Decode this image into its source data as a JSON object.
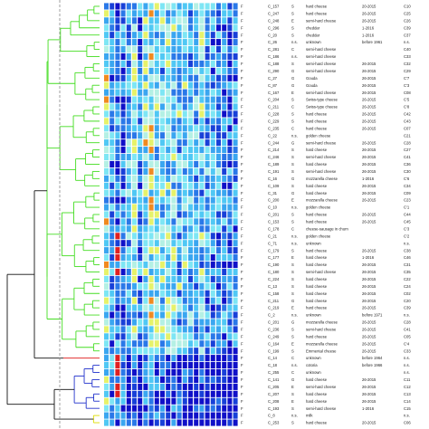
{
  "figure": {
    "type": "dendrogram-heatmap",
    "cluster_colors": {
      "green": "#44dd22",
      "red": "#dd1111",
      "blue": "#2233cc",
      "yellow": "#dddd00",
      "root": "#111111",
      "cutoff_line": "#888888"
    },
    "heatmap_palette": [
      "#1010c8",
      "#1840d8",
      "#2a78e8",
      "#3aa6f0",
      "#50c8f4",
      "#7ee6f4",
      "#b4f0e4",
      "#e6f26a",
      "#f08a20",
      "#e02020"
    ],
    "rows": [
      {
        "f": "F",
        "id": "C_157",
        "n": "S",
        "type": "hard cheese",
        "date": "20-2015",
        "code": "C10",
        "cl": "g"
      },
      {
        "f": "F",
        "id": "C_247",
        "n": "S",
        "type": "hard cheese",
        "date": "26-2015",
        "code": "C25",
        "cl": "g"
      },
      {
        "f": "F",
        "id": "C_248",
        "n": "E",
        "type": "semi-hard cheese",
        "date": "26-2015",
        "code": "C26",
        "cl": "g"
      },
      {
        "f": "F",
        "id": "C_296",
        "n": "S",
        "type": "cheddar",
        "date": "1-2016",
        "code": "C39",
        "cl": "g"
      },
      {
        "f": "F",
        "id": "C_20",
        "n": "S",
        "type": "cheddar",
        "date": "1-2016",
        "code": "C37",
        "cl": "g"
      },
      {
        "f": "F",
        "id": "C_26",
        "n": "n.s.",
        "type": "unknown",
        "date": "before 1961",
        "code": "n.s.",
        "cl": "g"
      },
      {
        "f": "F",
        "id": "C_281",
        "n": "C",
        "type": "semi-hard cheese",
        "date": "",
        "code": "C40",
        "cl": "g"
      },
      {
        "f": "F",
        "id": "C_186",
        "n": "n.s.",
        "type": "semi-hard cheese",
        "date": "",
        "code": "C33",
        "cl": "g"
      },
      {
        "f": "F",
        "id": "C_188",
        "n": "S",
        "type": "semi-hard cheese",
        "date": "26-2015",
        "code": "C32",
        "cl": "g"
      },
      {
        "f": "F",
        "id": "C_290",
        "n": "G",
        "type": "semi-hard cheese",
        "date": "26-2015",
        "code": "C29",
        "cl": "g"
      },
      {
        "f": "F",
        "id": "C_27",
        "n": "G",
        "type": "Gouda",
        "date": "26-2015",
        "code": "C'7",
        "cl": "g"
      },
      {
        "f": "F",
        "id": "C_87",
        "n": "G",
        "type": "Gouda",
        "date": "26-2015",
        "code": "C'3",
        "cl": "g"
      },
      {
        "f": "F",
        "id": "C_167",
        "n": "E",
        "type": "semi-hard cheese",
        "date": "26-2015",
        "code": "C08",
        "cl": "g"
      },
      {
        "f": "F",
        "id": "C_204",
        "n": "S",
        "type": "Swiss-type cheese",
        "date": "26-2015",
        "code": "C'5",
        "cl": "g"
      },
      {
        "f": "F",
        "id": "C_211",
        "n": "C",
        "type": "Swiss-type cheese",
        "date": "26-2015",
        "code": "C'8",
        "cl": "g"
      },
      {
        "f": "F",
        "id": "C_228",
        "n": "S",
        "type": "hard cheese",
        "date": "26-2015",
        "code": "C42",
        "cl": "g"
      },
      {
        "f": "F",
        "id": "C_229",
        "n": "S",
        "type": "hard cheese",
        "date": "26-2015",
        "code": "C43",
        "cl": "g"
      },
      {
        "f": "F",
        "id": "C_235",
        "n": "C",
        "type": "hard cheese",
        "date": "26-2015",
        "code": "C07",
        "cl": "g"
      },
      {
        "f": "F",
        "id": "C_22",
        "n": "n.s.",
        "type": "golden cheese",
        "date": "",
        "code": "C21",
        "cl": "g"
      },
      {
        "f": "F",
        "id": "C_244",
        "n": "G",
        "type": "semi-hard cheese",
        "date": "26-2015",
        "code": "C28",
        "cl": "g"
      },
      {
        "f": "F",
        "id": "C_214",
        "n": "S",
        "type": "hard cheese",
        "date": "26-2015",
        "code": "C27",
        "cl": "g"
      },
      {
        "f": "F",
        "id": "C_246",
        "n": "S",
        "type": "semi-hard cheese",
        "date": "26-2015",
        "code": "C41",
        "cl": "g"
      },
      {
        "f": "F",
        "id": "C_189",
        "n": "S",
        "type": "hard cheese",
        "date": "26-2015",
        "code": "C36",
        "cl": "g"
      },
      {
        "f": "F",
        "id": "C_191",
        "n": "S",
        "type": "semi-hard cheese",
        "date": "26-2015",
        "code": "C30",
        "cl": "g"
      },
      {
        "f": "F",
        "id": "C_16",
        "n": "G",
        "type": "mozzarella cheese",
        "date": "1-2016",
        "code": "C'6",
        "cl": "g"
      },
      {
        "f": "F",
        "id": "C_109",
        "n": "S",
        "type": "hard cheese",
        "date": "26-2015",
        "code": "C34",
        "cl": "g"
      },
      {
        "f": "F",
        "id": "C_31",
        "n": "G",
        "type": "hard cheese",
        "date": "26-2015",
        "code": "C09",
        "cl": "g"
      },
      {
        "f": "F",
        "id": "C_200",
        "n": "E",
        "type": "mozzarella cheese",
        "date": "26-2015",
        "code": "C23",
        "cl": "g"
      },
      {
        "f": "F",
        "id": "C_10",
        "n": "n.s.",
        "type": "golden cheese",
        "date": "",
        "code": "C'1",
        "cl": "g"
      },
      {
        "f": "F",
        "id": "C_201",
        "n": "S",
        "type": "hard cheese",
        "date": "26-2015",
        "code": "C44",
        "cl": "g"
      },
      {
        "f": "F",
        "id": "C_153",
        "n": "S",
        "type": "hard cheese",
        "date": "26-2015",
        "code": "C45",
        "cl": "g"
      },
      {
        "f": "F",
        "id": "C_178",
        "n": "C",
        "type": "cheese-sausage in churn",
        "date": "",
        "code": "C'3",
        "cl": "g"
      },
      {
        "f": "F",
        "id": "C_21",
        "n": "n.s.",
        "type": "golden cheese",
        "date": "",
        "code": "C'2",
        "cl": "g"
      },
      {
        "f": "F",
        "id": "C_71",
        "n": "n.s.",
        "type": "unknown",
        "date": "",
        "code": "n.s.",
        "cl": "g"
      },
      {
        "f": "F",
        "id": "C_179",
        "n": "S",
        "type": "hard cheese",
        "date": "26-2015",
        "code": "C38",
        "cl": "g"
      },
      {
        "f": "F",
        "id": "C_177",
        "n": "E",
        "type": "hard cheese",
        "date": "1-2016",
        "code": "C46",
        "cl": "g"
      },
      {
        "f": "F",
        "id": "C_190",
        "n": "S",
        "type": "hard cheese",
        "date": "26-2015",
        "code": "C31",
        "cl": "g"
      },
      {
        "f": "F",
        "id": "C_180",
        "n": "S",
        "type": "semi-hard cheese",
        "date": "26-2015",
        "code": "C35",
        "cl": "g"
      },
      {
        "f": "F",
        "id": "C_224",
        "n": "S",
        "type": "hard cheese",
        "date": "26-2015",
        "code": "C22",
        "cl": "g"
      },
      {
        "f": "F",
        "id": "C_13",
        "n": "S",
        "type": "hard cheese",
        "date": "26-2015",
        "code": "C24",
        "cl": "g"
      },
      {
        "f": "F",
        "id": "C_158",
        "n": "S",
        "type": "hard cheese",
        "date": "26-2015",
        "code": "C02",
        "cl": "g"
      },
      {
        "f": "F",
        "id": "C_211",
        "n": "G",
        "type": "hard cheese",
        "date": "26-2015",
        "code": "C20",
        "cl": "g"
      },
      {
        "f": "F",
        "id": "C_219",
        "n": "E",
        "type": "hard cheese",
        "date": "26-2015",
        "code": "C39",
        "cl": "g"
      },
      {
        "f": "F",
        "id": "C_2",
        "n": "n.s.",
        "type": "unknown",
        "date": "before 1971",
        "code": "n.s.",
        "cl": "g"
      },
      {
        "f": "F",
        "id": "C_201",
        "n": "G",
        "type": "mozzarella cheese",
        "date": "26-2015",
        "code": "C28",
        "cl": "g"
      },
      {
        "f": "F",
        "id": "C_236",
        "n": "S",
        "type": "semi-hard cheese",
        "date": "26-2015",
        "code": "C41",
        "cl": "g"
      },
      {
        "f": "F",
        "id": "C_249",
        "n": "S",
        "type": "hard cheese",
        "date": "26-2015",
        "code": "C05",
        "cl": "g"
      },
      {
        "f": "F",
        "id": "C_164",
        "n": "E",
        "type": "mozzarella cheese",
        "date": "26-2015",
        "code": "C'4",
        "cl": "g"
      },
      {
        "f": "F",
        "id": "C_199",
        "n": "S",
        "type": "Emmental cheese",
        "date": "26-2015",
        "code": "C33",
        "cl": "g"
      },
      {
        "f": "F",
        "id": "C_14",
        "n": "C",
        "type": "unknown",
        "date": "before 1964",
        "code": "n.s.",
        "cl": "r"
      },
      {
        "f": "F",
        "id": "C_18",
        "n": "n.s.",
        "type": "cotoria",
        "date": "before 1966",
        "code": "n.s.",
        "cl": "b"
      },
      {
        "f": "F",
        "id": "C_255",
        "n": "C",
        "type": "unknown",
        "date": "",
        "code": "n.s.",
        "cl": "b"
      },
      {
        "f": "F",
        "id": "C_141",
        "n": "G",
        "type": "hard cheese",
        "date": "26-2015",
        "code": "C11",
        "cl": "b"
      },
      {
        "f": "F",
        "id": "C_205",
        "n": "E",
        "type": "semi-hard cheese",
        "date": "26-2015",
        "code": "C12",
        "cl": "b"
      },
      {
        "f": "F",
        "id": "C_207",
        "n": "S",
        "type": "hard cheese",
        "date": "26-2015",
        "code": "C13",
        "cl": "b"
      },
      {
        "f": "F",
        "id": "C_208",
        "n": "E",
        "type": "hard cheese",
        "date": "26-2015",
        "code": "C14",
        "cl": "b"
      },
      {
        "f": "F",
        "id": "C_193",
        "n": "S",
        "type": "semi-hard cheese",
        "date": "1-2016",
        "code": "C15",
        "cl": "b"
      },
      {
        "f": "F",
        "id": "C_8",
        "n": "n.s.",
        "type": "milk",
        "date": "",
        "code": "n.s.",
        "cl": "y"
      },
      {
        "f": "F",
        "id": "C_253",
        "n": "S",
        "type": "hard cheese",
        "date": "20-2015",
        "code": "C06",
        "cl": "y"
      }
    ]
  }
}
